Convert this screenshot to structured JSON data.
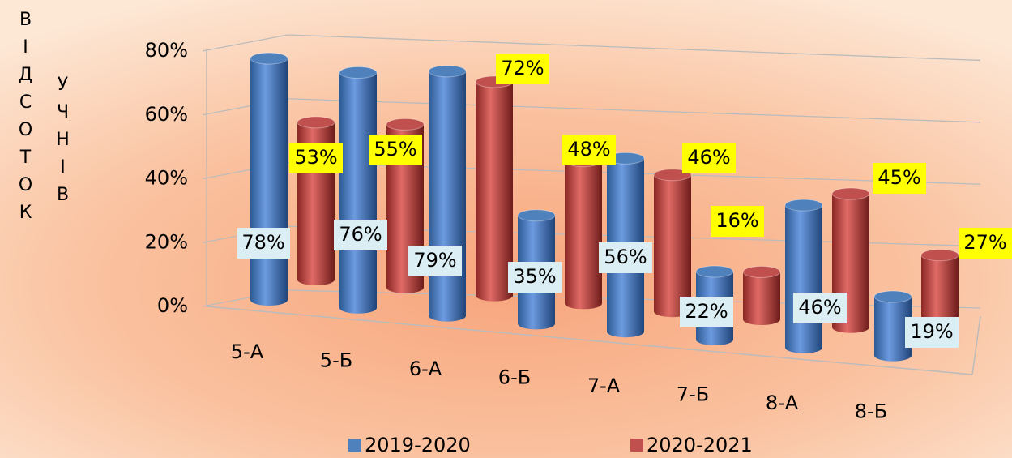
{
  "chart_data": {
    "type": "bar3d",
    "y_label": [
      "ВІДСОТОК",
      "УЧНІВ"
    ],
    "categories": [
      "5-А",
      "5-Б",
      "6-А",
      "6-Б",
      "7-А",
      "7-Б",
      "8-А",
      "8-Б"
    ],
    "series": [
      {
        "name": "2019-2020",
        "color": "#4f81bd",
        "values": [
          78,
          76,
          79,
          35,
          56,
          22,
          46,
          19
        ],
        "value_labels": [
          "78%",
          "76%",
          "79%",
          "35%",
          "56%",
          "22%",
          "46%",
          "19%"
        ]
      },
      {
        "name": "2020-2021",
        "color": "#c0504d",
        "values": [
          53,
          55,
          72,
          48,
          46,
          16,
          45,
          27
        ],
        "value_labels": [
          "53%",
          "55%",
          "72%",
          "48%",
          "46%",
          "16%",
          "45%",
          "27%"
        ]
      }
    ],
    "ylim": [
      0,
      80
    ],
    "yticks": [
      {
        "value": 0,
        "label": "0%"
      },
      {
        "value": 20,
        "label": "20%"
      },
      {
        "value": 40,
        "label": "40%"
      },
      {
        "value": 60,
        "label": "60%"
      },
      {
        "value": 80,
        "label": "80%"
      }
    ],
    "grid": true,
    "legend": "bottom"
  }
}
